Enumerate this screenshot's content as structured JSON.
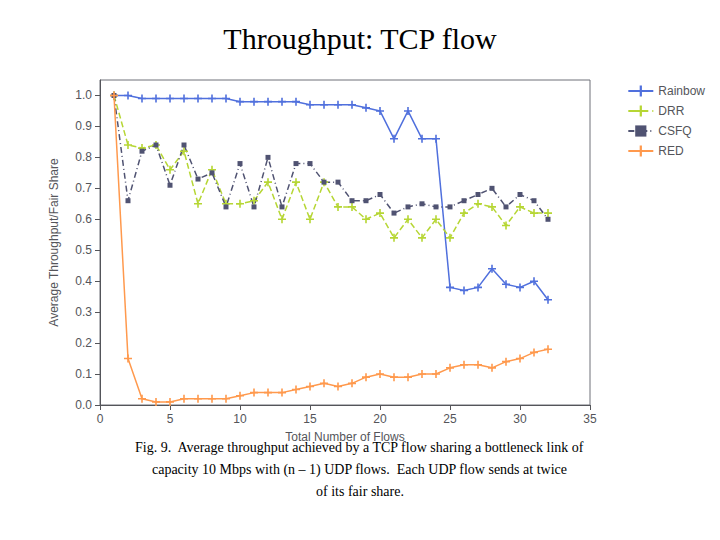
{
  "chart_data": {
    "type": "line",
    "title": "Throughput: TCP flow",
    "xlabel": "Total Number of Flows",
    "ylabel": "Average Throughput/Fair Share",
    "annotations": [
      "Fig. 9.  Average throughput achieved by a TCP flow sharing a bottleneck link of",
      "capacity 10 Mbps with (n – 1) UDP flows.  Each UDP flow sends at twice",
      "of its fair share."
    ],
    "x": [
      1,
      2,
      3,
      4,
      5,
      6,
      7,
      8,
      9,
      10,
      11,
      12,
      13,
      14,
      15,
      16,
      17,
      18,
      19,
      20,
      21,
      22,
      23,
      24,
      25,
      26,
      27,
      28,
      29,
      30,
      31,
      32
    ],
    "series": [
      {
        "name": "Rainbow",
        "marker": "plus",
        "line_style": "solid",
        "values": [
          1.0,
          1.0,
          0.99,
          0.99,
          0.99,
          0.99,
          0.99,
          0.99,
          0.99,
          0.98,
          0.98,
          0.98,
          0.98,
          0.98,
          0.97,
          0.97,
          0.97,
          0.97,
          0.96,
          0.95,
          0.86,
          0.95,
          0.86,
          0.86,
          0.38,
          0.37,
          0.38,
          0.44,
          0.39,
          0.38,
          0.4,
          0.34
        ]
      },
      {
        "name": "DRR",
        "marker": "plus",
        "line_style": "dashed",
        "values": [
          1.0,
          0.84,
          0.83,
          0.84,
          0.76,
          0.82,
          0.65,
          0.76,
          0.65,
          0.65,
          0.66,
          0.72,
          0.6,
          0.72,
          0.6,
          0.72,
          0.64,
          0.64,
          0.6,
          0.62,
          0.54,
          0.6,
          0.54,
          0.6,
          0.54,
          0.62,
          0.65,
          0.64,
          0.58,
          0.64,
          0.62,
          0.62
        ]
      },
      {
        "name": "CSFQ",
        "marker": "square",
        "line_style": "dashdot",
        "values": [
          1.0,
          0.66,
          0.82,
          0.84,
          0.71,
          0.84,
          0.73,
          0.75,
          0.64,
          0.78,
          0.64,
          0.8,
          0.64,
          0.78,
          0.78,
          0.72,
          0.72,
          0.66,
          0.66,
          0.68,
          0.62,
          0.64,
          0.65,
          0.64,
          0.64,
          0.66,
          0.68,
          0.7,
          0.64,
          0.68,
          0.66,
          0.6
        ]
      },
      {
        "name": "RED",
        "marker": "plus",
        "line_style": "solid",
        "values": [
          1.0,
          0.15,
          0.02,
          0.01,
          0.01,
          0.02,
          0.02,
          0.02,
          0.02,
          0.03,
          0.04,
          0.04,
          0.04,
          0.05,
          0.06,
          0.07,
          0.06,
          0.07,
          0.09,
          0.1,
          0.09,
          0.09,
          0.1,
          0.1,
          0.12,
          0.13,
          0.13,
          0.12,
          0.14,
          0.15,
          0.17,
          0.18
        ]
      }
    ],
    "xlim": [
      0,
      35
    ],
    "ylim": [
      0,
      1.05
    ],
    "xticks": [
      0,
      5,
      10,
      15,
      20,
      25,
      30,
      35
    ],
    "yticks": [
      {
        "value": 0,
        "label": "0.0"
      },
      0.1,
      0.2,
      0.3,
      0.4,
      0.5,
      0.6,
      0.7,
      0.8,
      0.9,
      {
        "value": 1.0,
        "label": "1.0"
      }
    ],
    "grid": false,
    "legend": "upper right"
  }
}
